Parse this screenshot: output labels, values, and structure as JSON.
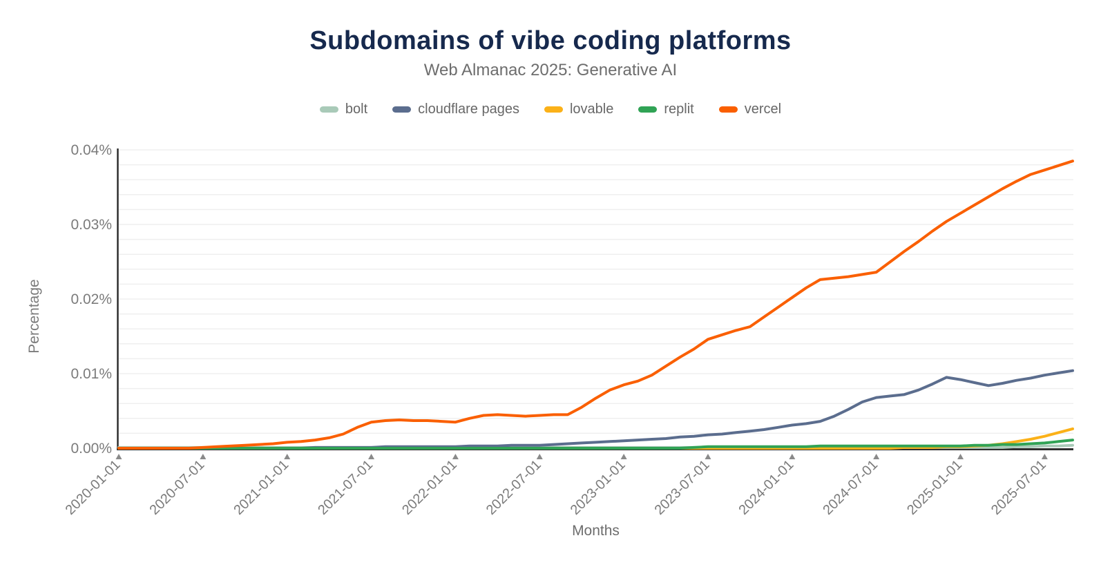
{
  "page": {
    "title": "Subdomains of vibe coding platforms",
    "subtitle": "Web Almanac 2025: Generative AI"
  },
  "colors": {
    "title_text": "#16294d",
    "subtitle_text": "#6d6d6d",
    "tick_text": "#7b7b7b",
    "legend_text": "#676767",
    "axis_line": "#2f2f2f",
    "gridline": "#efefef",
    "tick_mark": "#8a8a8a"
  },
  "chart_data": {
    "type": "line",
    "title": "Subdomains of vibe coding platforms",
    "subtitle": "Web Almanac 2025: Generative AI",
    "xlabel": "Months",
    "ylabel": "Percentage",
    "x_unit": "monthly points from 2020-01 to 2025-09",
    "x_tick_labels": [
      "2020-01-01",
      "2020-07-01",
      "2021-01-01",
      "2021-07-01",
      "2022-01-01",
      "2022-07-01",
      "2023-01-01",
      "2023-07-01",
      "2024-01-01",
      "2024-07-01",
      "2025-01-01",
      "2025-07-01"
    ],
    "x_tick_month_indices": [
      0,
      6,
      12,
      18,
      24,
      30,
      36,
      42,
      48,
      54,
      60,
      66
    ],
    "y_tick_labels": [
      "0.00%",
      "0.01%",
      "0.02%",
      "0.03%",
      "0.04%"
    ],
    "y_tick_values": [
      0,
      0.01,
      0.02,
      0.03,
      0.04
    ],
    "ylim": [
      0,
      0.04
    ],
    "grid": {
      "horizontal": true,
      "step_percent": 0.002,
      "vertical": false
    },
    "legend_position": "top",
    "series": [
      {
        "name": "bolt",
        "color": "#a9cab8",
        "values": [
          0.0001,
          0.0001,
          0.0001,
          0.0001,
          0.0001,
          0.0001,
          0.0001,
          0.0001,
          0.0001,
          0.0001,
          0.0001,
          0.0001,
          0.0001,
          0.0001,
          0.0001,
          0.0001,
          0.0001,
          0.0001,
          0.0001,
          0.0001,
          0.0001,
          0.0001,
          0.0001,
          0.0001,
          0.0001,
          0.0001,
          0.0001,
          0.0001,
          0.0001,
          0.0001,
          0.0001,
          0.0001,
          0.0001,
          0.0001,
          0.0001,
          0.0001,
          0.0001,
          0.0001,
          0.0001,
          0.0001,
          0.0001,
          0.0001,
          0.0001,
          0.0001,
          0.0001,
          0.0001,
          0.0001,
          0.0001,
          0.0001,
          0.0001,
          0.0001,
          0.0001,
          0.0001,
          0.0001,
          0.0001,
          0.0001,
          0.0001,
          0.0001,
          0.0001,
          0.0001,
          0.0001,
          0.0001,
          0.0001,
          0.0001,
          0.0002,
          0.0002,
          0.0003,
          0.0003,
          0.0004
        ]
      },
      {
        "name": "cloudflare pages",
        "color": "#5b6d8e",
        "values": [
          0,
          0,
          0,
          0,
          0,
          0,
          0,
          0,
          0,
          0,
          0,
          0,
          0,
          0,
          0.0001,
          0.0001,
          0.0001,
          0.0001,
          0.0001,
          0.0002,
          0.0002,
          0.0002,
          0.0002,
          0.0002,
          0.0002,
          0.0003,
          0.0003,
          0.0003,
          0.0004,
          0.0004,
          0.0004,
          0.0005,
          0.0006,
          0.0007,
          0.0008,
          0.0009,
          0.001,
          0.0011,
          0.0012,
          0.0013,
          0.0015,
          0.0016,
          0.0018,
          0.0019,
          0.0021,
          0.0023,
          0.0025,
          0.0028,
          0.0031,
          0.0033,
          0.0036,
          0.0043,
          0.0052,
          0.0062,
          0.0068,
          0.007,
          0.0072,
          0.0078,
          0.0086,
          0.0095,
          0.0092,
          0.0088,
          0.0084,
          0.0087,
          0.0091,
          0.0094,
          0.0098,
          0.0101,
          0.0104
        ]
      },
      {
        "name": "lovable",
        "color": "#fbb118",
        "values": [
          0,
          0,
          0,
          0,
          0,
          0,
          0,
          0,
          0,
          0,
          0,
          0,
          0,
          0,
          0,
          0,
          0,
          0,
          0,
          0,
          0,
          0,
          0,
          0,
          0,
          0,
          0,
          0,
          0,
          0,
          0,
          0,
          0,
          0,
          0,
          0,
          0,
          0,
          0,
          0,
          0,
          0,
          0,
          0,
          0,
          0,
          0,
          0,
          0,
          0,
          0,
          0,
          0,
          0,
          0,
          0,
          0.0001,
          0.0001,
          0.0001,
          0.0002,
          0.0002,
          0.0003,
          0.0004,
          0.0006,
          0.0009,
          0.0012,
          0.0016,
          0.0021,
          0.0026
        ]
      },
      {
        "name": "replit",
        "color": "#30a355",
        "values": [
          0,
          0,
          0,
          0,
          0,
          0,
          0,
          0,
          0,
          0,
          0,
          0,
          0,
          0,
          0,
          0,
          0,
          0,
          0,
          0,
          0,
          0,
          0,
          0,
          0,
          0,
          0,
          0,
          0,
          0,
          0,
          0,
          0,
          0,
          0,
          0,
          0,
          0,
          0,
          0,
          0,
          0.0001,
          0.0002,
          0.0002,
          0.0002,
          0.0002,
          0.0002,
          0.0002,
          0.0002,
          0.0002,
          0.0003,
          0.0003,
          0.0003,
          0.0003,
          0.0003,
          0.0003,
          0.0003,
          0.0003,
          0.0003,
          0.0003,
          0.0003,
          0.0004,
          0.0004,
          0.0005,
          0.0005,
          0.0006,
          0.0007,
          0.0009,
          0.0011
        ]
      },
      {
        "name": "vercel",
        "color": "#fa5f00",
        "values": [
          0,
          0,
          0,
          0,
          0,
          0,
          0.0001,
          0.0002,
          0.0003,
          0.0004,
          0.0005,
          0.0006,
          0.0008,
          0.0009,
          0.0011,
          0.0014,
          0.0019,
          0.0028,
          0.0035,
          0.0037,
          0.0038,
          0.0037,
          0.0037,
          0.0036,
          0.0035,
          0.004,
          0.0044,
          0.0045,
          0.0044,
          0.0043,
          0.0044,
          0.0045,
          0.0045,
          0.0055,
          0.0067,
          0.0078,
          0.0085,
          0.009,
          0.0098,
          0.011,
          0.0122,
          0.0133,
          0.0146,
          0.0152,
          0.0158,
          0.0163,
          0.0176,
          0.0189,
          0.0202,
          0.0215,
          0.0226,
          0.0228,
          0.023,
          0.0233,
          0.0236,
          0.025,
          0.0264,
          0.0277,
          0.0291,
          0.0304,
          0.0315,
          0.0326,
          0.0337,
          0.0348,
          0.0358,
          0.0367,
          0.0373,
          0.0379,
          0.0385
        ]
      }
    ]
  }
}
